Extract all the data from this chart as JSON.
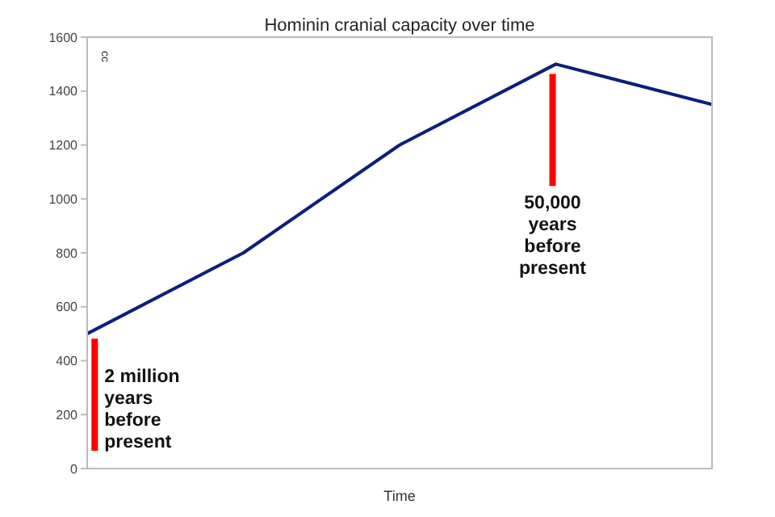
{
  "chart_data": {
    "type": "line",
    "title": "Hominin cranial capacity over time",
    "xlabel": "Time",
    "ylabel": "cc",
    "categories": [
      null,
      null,
      null,
      null,
      null
    ],
    "series": [
      {
        "color": "#0d1f7a",
        "values": [
          500,
          800,
          1200,
          1500,
          1350
        ]
      }
    ],
    "ylim": [
      0,
      1600
    ],
    "yticks": [
      0,
      200,
      400,
      600,
      800,
      1000,
      1200,
      1400,
      1600
    ],
    "grid": false,
    "legend": false,
    "marker": "none",
    "line_style": "solid",
    "annotations": [
      "2 million years before present",
      "50,000 years before present"
    ]
  }
}
